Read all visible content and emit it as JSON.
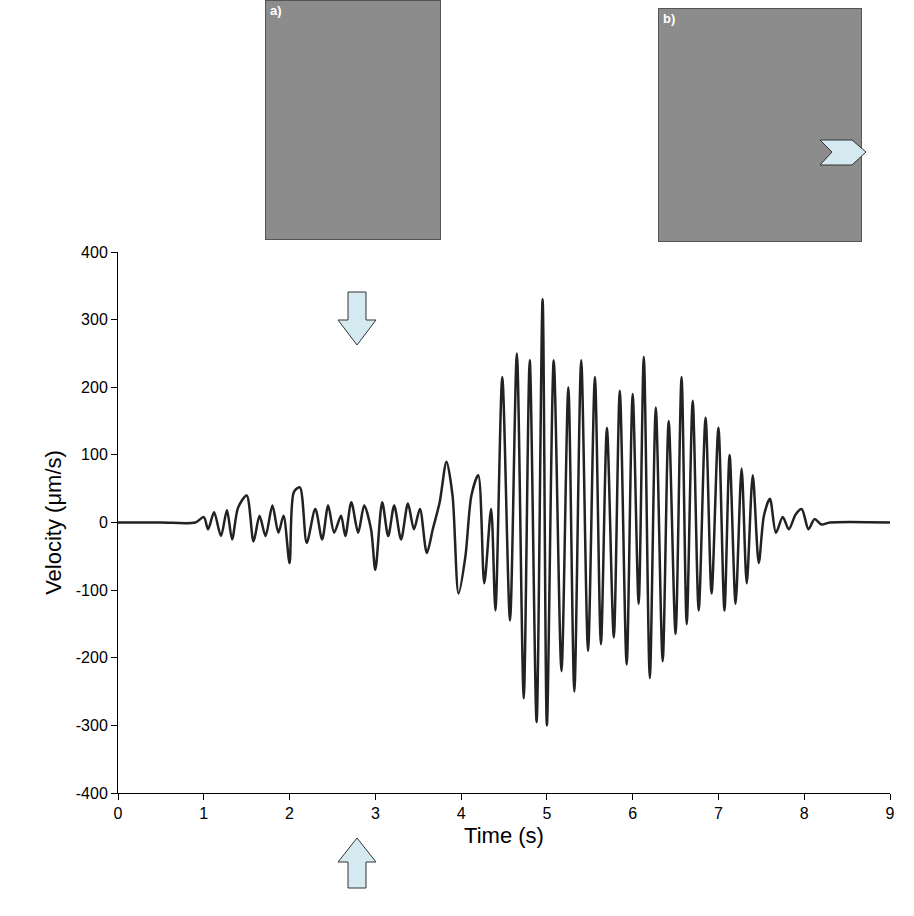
{
  "chart_data": {
    "type": "line",
    "x_label": "Time (s)",
    "y_label": "Velocity (μm/s)",
    "annotations": [
      "a)",
      "b)"
    ],
    "xlim": [
      0,
      9
    ],
    "ylim": [
      -400,
      400
    ],
    "xticks": [
      0,
      1,
      2,
      3,
      4,
      5,
      6,
      7,
      8,
      9
    ],
    "yticks": [
      -400,
      -300,
      -200,
      -100,
      0,
      100,
      200,
      300,
      400
    ],
    "grid": false,
    "x": [
      0,
      0.5,
      0.9,
      1.0,
      1.05,
      1.12,
      1.2,
      1.27,
      1.33,
      1.4,
      1.5,
      1.58,
      1.65,
      1.72,
      1.8,
      1.87,
      1.93,
      2.0,
      2.05,
      2.12,
      2.2,
      2.3,
      2.38,
      2.45,
      2.52,
      2.6,
      2.65,
      2.72,
      2.8,
      2.87,
      2.95,
      3.0,
      3.08,
      3.15,
      3.22,
      3.3,
      3.38,
      3.45,
      3.52,
      3.6,
      3.67,
      3.75,
      3.83,
      3.9,
      3.97,
      4.05,
      4.12,
      4.2,
      4.27,
      4.35,
      4.4,
      4.48,
      4.57,
      4.65,
      4.73,
      4.8,
      4.88,
      4.95,
      5.0,
      5.08,
      5.17,
      5.25,
      5.32,
      5.4,
      5.48,
      5.56,
      5.63,
      5.7,
      5.78,
      5.85,
      5.93,
      6.0,
      6.07,
      6.13,
      6.2,
      6.27,
      6.35,
      6.42,
      6.5,
      6.57,
      6.63,
      6.7,
      6.77,
      6.85,
      6.92,
      7.0,
      7.07,
      7.13,
      7.2,
      7.27,
      7.33,
      7.4,
      7.47,
      7.53,
      7.6,
      7.67,
      7.75,
      7.82,
      7.9,
      7.97,
      8.05,
      8.12,
      8.2,
      8.3,
      9.0
    ],
    "series": [
      {
        "color": "#222222",
        "line_style": "solid",
        "values": [
          0,
          0,
          0,
          8,
          -10,
          15,
          -20,
          18,
          -25,
          22,
          40,
          -28,
          10,
          -20,
          25,
          -15,
          10,
          -60,
          45,
          52,
          -30,
          20,
          -25,
          25,
          -15,
          10,
          -20,
          30,
          -15,
          25,
          -10,
          -70,
          30,
          -20,
          25,
          -25,
          28,
          -10,
          20,
          -45,
          -10,
          30,
          90,
          40,
          -105,
          -50,
          40,
          70,
          -90,
          20,
          -130,
          215,
          -145,
          250,
          -260,
          240,
          -295,
          330,
          -300,
          240,
          -220,
          200,
          -250,
          240,
          -190,
          215,
          -180,
          140,
          -170,
          195,
          -210,
          190,
          -120,
          245,
          -230,
          170,
          -205,
          150,
          -165,
          215,
          -150,
          180,
          -130,
          155,
          -105,
          140,
          -130,
          100,
          -120,
          80,
          -90,
          70,
          -60,
          10,
          35,
          -15,
          8,
          -10,
          12,
          20,
          -10,
          5,
          -3,
          0,
          0
        ]
      }
    ]
  }
}
